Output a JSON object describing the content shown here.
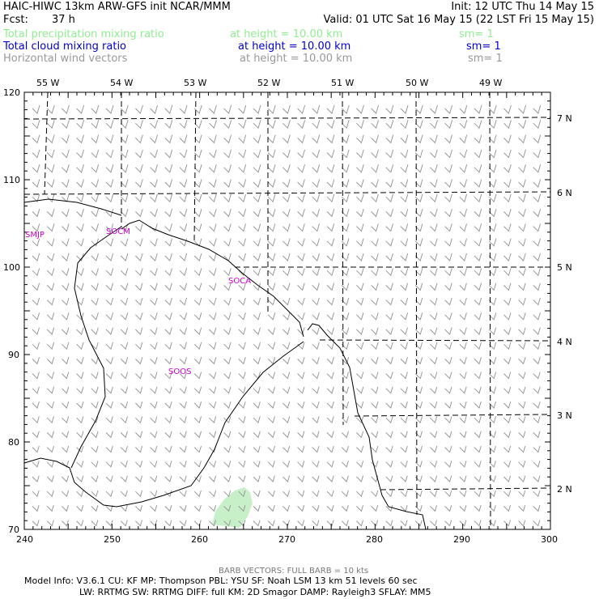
{
  "header": {
    "line1_left": "HAIC-HIWC 13km ARW-GFS init   NCAR/MMM",
    "line1_right": "Init: 12 UTC Thu 14 May 15",
    "fcst_label": "Fcst:",
    "fcst_value": "37 h",
    "valid": "Valid: 01 UTC Sat 16 May 15 (22 LST Fri 15 May 15)"
  },
  "fields": [
    {
      "name": "Total precipitation mixing ratio",
      "height": "at height = 10.00 km",
      "sm": "sm= 1",
      "color": "#90ee90"
    },
    {
      "name": "Total cloud mixing ratio",
      "height": "at height = 10.00 km",
      "sm": "sm= 1",
      "color": "#0000cc"
    },
    {
      "name": "Horizontal wind vectors",
      "height": "at height = 10.00 km",
      "sm": "sm= 1",
      "color": "#999999"
    }
  ],
  "map": {
    "top_lon_labels": [
      "55 W",
      "54 W",
      "53 W",
      "52 W",
      "51 W",
      "50 W",
      "49 W"
    ],
    "right_lat_labels": [
      "7 N",
      "6 N",
      "5 N",
      "4 N",
      "3 N",
      "2 N"
    ],
    "left_grid_labels": [
      "120",
      "110",
      "100",
      "90",
      "80",
      "70"
    ],
    "bottom_grid_labels": [
      "240",
      "250",
      "260",
      "270",
      "280",
      "290",
      "300"
    ],
    "stations": [
      "SMJP",
      "SOCM",
      "SOCA",
      "SOOS"
    ],
    "precip_color": "#c8f0c8",
    "barb_color": "#999999"
  },
  "footer": {
    "barb_note": "BARB VECTORS:  FULL BARB = 10 kts",
    "model_info_1": "Model Info: V3.6.1    CU: KF      MP: Thompson     PBL: YSU      SF: Noah LSM      13 km    51 levels   60 sec",
    "model_info_2": "LW: RRTMG    SW: RRTMG   DIFF: full     KM: 2D Smagor  DAMP: Rayleigh3   SFLAY: MM5"
  }
}
